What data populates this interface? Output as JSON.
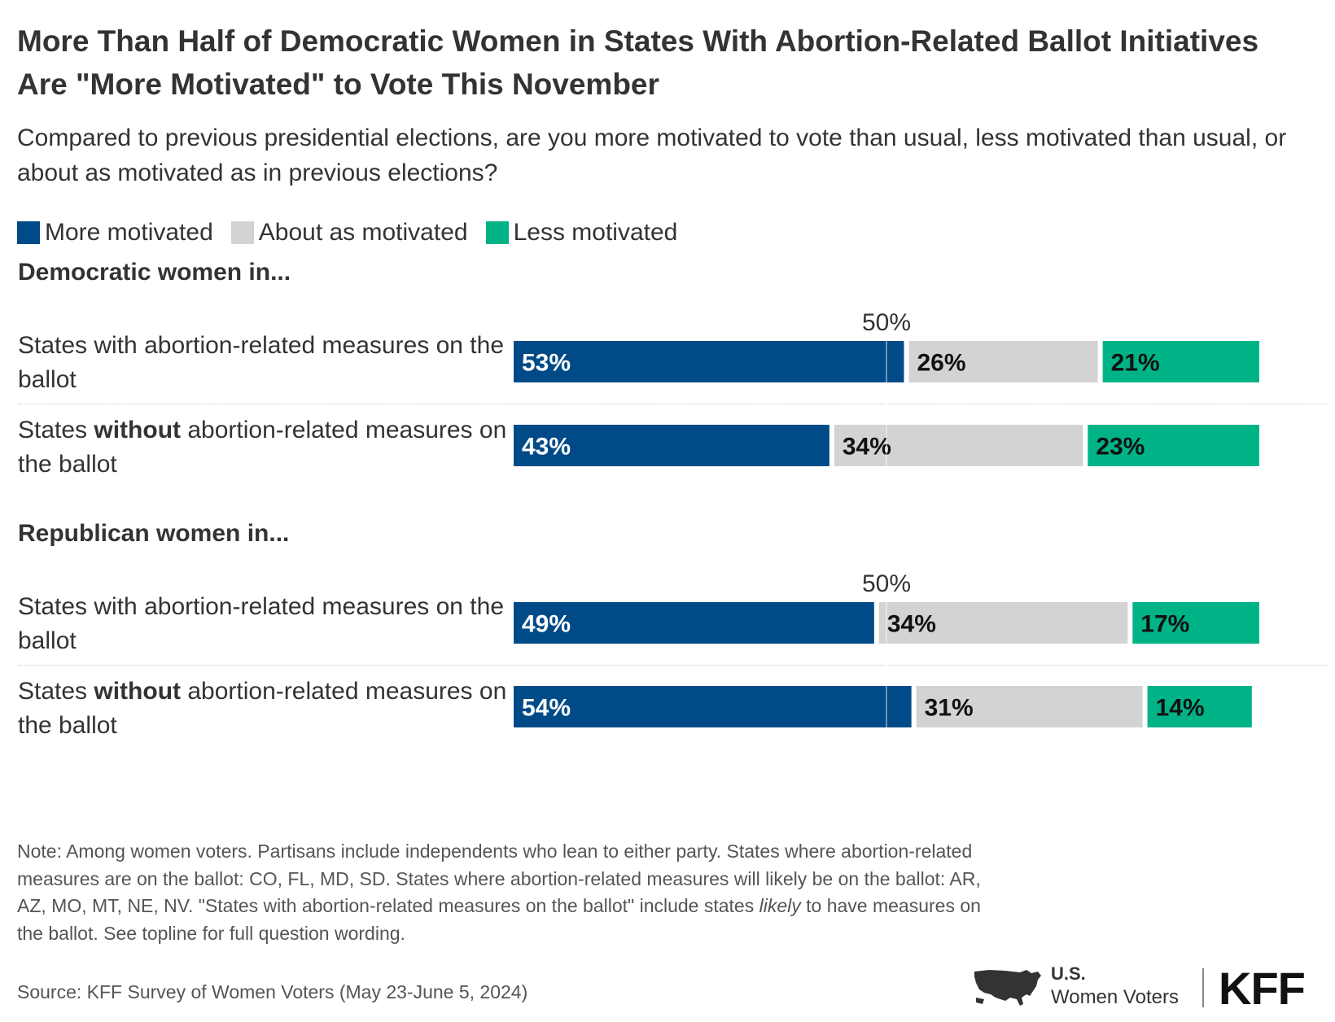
{
  "header": {
    "title": "More Than Half of Democratic Women in States With Abortion-Related Ballot Initiatives Are \"More Motivated\" to Vote This November",
    "subtitle": "Compared to previous presidential elections, are you more motivated to vote than usual, less motivated than usual, or about as motivated as in previous elections?"
  },
  "legend": [
    {
      "label": "More motivated",
      "color": "#004B87"
    },
    {
      "label": "About as motivated",
      "color": "#D3D3D3"
    },
    {
      "label": "Less motivated",
      "color": "#00B386"
    }
  ],
  "groups": [
    {
      "heading": "Democratic women in...",
      "reference_label": "50%",
      "rows": [
        {
          "label_pre": "States with abortion-related measures on the ballot",
          "label_bold": "",
          "label_post": ""
        },
        {
          "label_pre": "States ",
          "label_bold": "without",
          "label_post": " abortion-related measures on the ballot"
        }
      ]
    },
    {
      "heading": "Republican women in...",
      "reference_label": "50%",
      "rows": [
        {
          "label_pre": "States with abortion-related measures on the ballot",
          "label_bold": "",
          "label_post": ""
        },
        {
          "label_pre": "States ",
          "label_bold": "without",
          "label_post": " abortion-related measures on the ballot"
        }
      ]
    }
  ],
  "chart_data": {
    "type": "bar",
    "orientation": "horizontal",
    "stacked": true,
    "xlim": [
      0,
      100
    ],
    "reference_line": 50,
    "categories": [
      "Democratic women: States with abortion-related measures on the ballot",
      "Democratic women: States without abortion-related measures on the ballot",
      "Republican women: States with abortion-related measures on the ballot",
      "Republican women: States without abortion-related measures on the ballot"
    ],
    "series": [
      {
        "name": "More motivated",
        "color": "#004B87",
        "values": [
          53,
          43,
          49,
          54
        ],
        "labels": [
          "53%",
          "43%",
          "49%",
          "54%"
        ]
      },
      {
        "name": "About as motivated",
        "color": "#D3D3D3",
        "values": [
          26,
          34,
          34,
          31
        ],
        "labels": [
          "26%",
          "34%",
          "34%",
          "31%"
        ]
      },
      {
        "name": "Less motivated",
        "color": "#00B386",
        "values": [
          21,
          23,
          17,
          14
        ],
        "labels": [
          "21%",
          "23%",
          "17%",
          "14%"
        ]
      }
    ]
  },
  "footer": {
    "note_pre": "Note: Among women voters. Partisans include independents who lean to either party. States where abortion-related measures are on the ballot: CO, FL, MD, SD. States where abortion-related measures will likely be on the ballot: AR, AZ, MO, MT, NE, NV. \"States with abortion-related measures on the ballot\" include states ",
    "note_italic": "likely",
    "note_post": " to have measures on the ballot. See topline for full question wording.",
    "source": "Source: KFF Survey of Women Voters (May 23-June 5, 2024)",
    "logo_line1": "U.S.",
    "logo_line2": "Women Voters",
    "kff_logo": "KFF"
  }
}
